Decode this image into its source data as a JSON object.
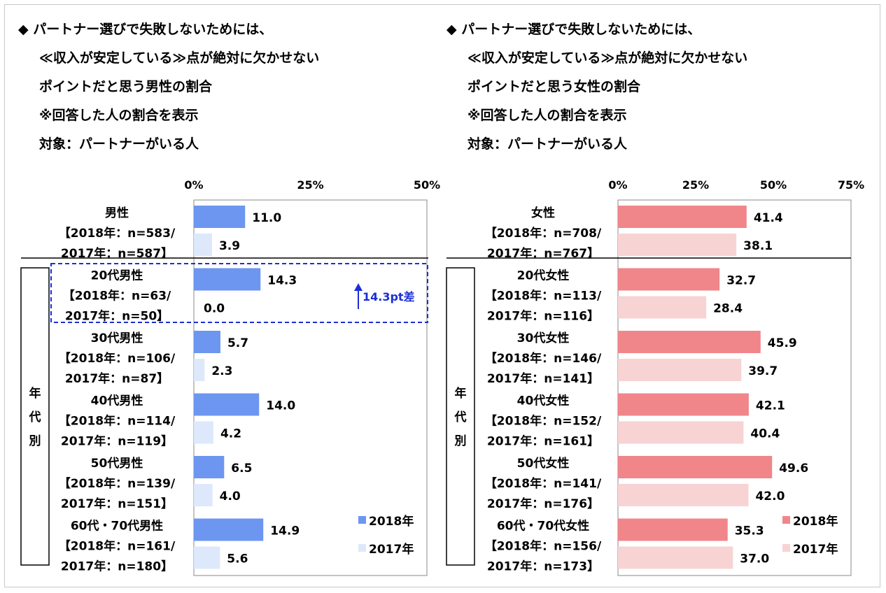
{
  "panels": [
    {
      "title_lines": [
        "◆ パートナー選びで失敗しないためには、",
        "≪収入が安定している≫点が絶対に欠かせない",
        "ポイントだと思う男性の割合",
        "※回答した人の割合を表示",
        "対象：パートナーがいる人"
      ],
      "colors": {
        "2018": "#6c96f0",
        "2017": "#dde9fb"
      },
      "chart_data": {
        "type": "bar",
        "orientation": "horizontal",
        "xlim": [
          0,
          50
        ],
        "ticks": [
          "0%",
          "25%",
          "50%"
        ],
        "group_label": [
          "年",
          "代",
          "別"
        ],
        "legend": [
          "2018年",
          "2017年"
        ],
        "legend_position": "bottom-right",
        "annotation": "14.3pt差",
        "categories": [
          {
            "label": [
              "男性",
              "【2018年：n=583/",
              "2017年：n=587】"
            ],
            "v2018": 11.0,
            "v2017": 3.9,
            "l2018": "11.0",
            "l2017": "3.9"
          },
          {
            "label": [
              "20代男性",
              "【2018年：n=63/",
              "2017年：n=50】"
            ],
            "v2018": 14.3,
            "v2017": 0.0,
            "l2018": "14.3",
            "l2017": "0.0"
          },
          {
            "label": [
              "30代男性",
              "【2018年：n=106/",
              "2017年：n=87】"
            ],
            "v2018": 5.7,
            "v2017": 2.3,
            "l2018": "5.7",
            "l2017": "2.3"
          },
          {
            "label": [
              "40代男性",
              "【2018年：n=114/",
              "2017年：n=119】"
            ],
            "v2018": 14.0,
            "v2017": 4.2,
            "l2018": "14.0",
            "l2017": "4.2"
          },
          {
            "label": [
              "50代男性",
              "【2018年：n=139/",
              "2017年：n=151】"
            ],
            "v2018": 6.5,
            "v2017": 4.0,
            "l2018": "6.5",
            "l2017": "4.0"
          },
          {
            "label": [
              "60代・70代男性",
              "【2018年：n=161/",
              "2017年：n=180】"
            ],
            "v2018": 14.9,
            "v2017": 5.6,
            "l2018": "14.9",
            "l2017": "5.6"
          }
        ]
      }
    },
    {
      "title_lines": [
        "◆ パートナー選びで失敗しないためには、",
        "≪収入が安定している≫点が絶対に欠かせない",
        "ポイントだと思う女性の割合",
        "※回答した人の割合を表示",
        "対象：パートナーがいる人"
      ],
      "colors": {
        "2018": "#f0868a",
        "2017": "#f8d3d3"
      },
      "chart_data": {
        "type": "bar",
        "orientation": "horizontal",
        "xlim": [
          0,
          75
        ],
        "ticks": [
          "0%",
          "25%",
          "50%",
          "75%"
        ],
        "group_label": [
          "年",
          "代",
          "別"
        ],
        "legend": [
          "2018年",
          "2017年"
        ],
        "legend_position": "bottom-right",
        "annotation": "",
        "categories": [
          {
            "label": [
              "女性",
              "【2018年：n=708/",
              "2017年：n=767】"
            ],
            "v2018": 41.4,
            "v2017": 38.1,
            "l2018": "41.4",
            "l2017": "38.1"
          },
          {
            "label": [
              "20代女性",
              "【2018年：n=113/",
              "2017年：n=116】"
            ],
            "v2018": 32.7,
            "v2017": 28.4,
            "l2018": "32.7",
            "l2017": "28.4"
          },
          {
            "label": [
              "30代女性",
              "【2018年：n=146/",
              "2017年：n=141】"
            ],
            "v2018": 45.9,
            "v2017": 39.7,
            "l2018": "45.9",
            "l2017": "39.7"
          },
          {
            "label": [
              "40代女性",
              "【2018年：n=152/",
              "2017年：n=161】"
            ],
            "v2018": 42.1,
            "v2017": 40.4,
            "l2018": "42.1",
            "l2017": "40.4"
          },
          {
            "label": [
              "50代女性",
              "【2018年：n=141/",
              "2017年：n=176】"
            ],
            "v2018": 49.6,
            "v2017": 42.0,
            "l2018": "49.6",
            "l2017": "42.0"
          },
          {
            "label": [
              "60代・70代女性",
              "【2018年：n=156/",
              "2017年：n=173】"
            ],
            "v2018": 35.3,
            "v2017": 37.0,
            "l2018": "35.3",
            "l2017": "37.0"
          }
        ]
      }
    }
  ]
}
